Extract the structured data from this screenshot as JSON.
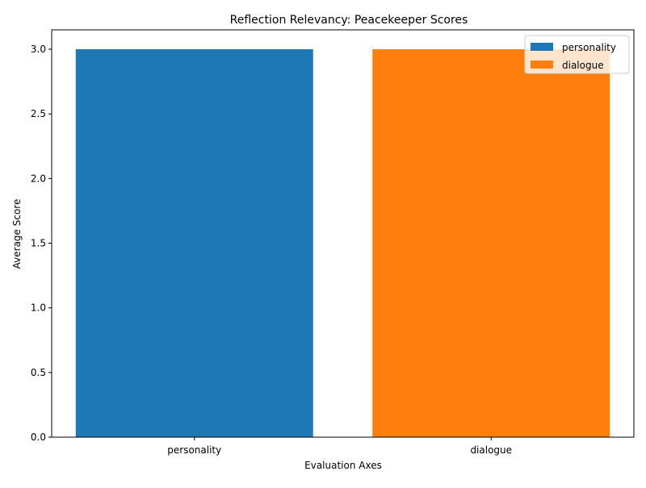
{
  "chart_data": {
    "type": "bar",
    "title": "Reflection Relevancy: Peacekeeper Scores",
    "xlabel": "Evaluation Axes",
    "ylabel": "Average Score",
    "categories": [
      "personality",
      "dialogue"
    ],
    "series": [
      {
        "name": "personality",
        "values": [
          3.0,
          null
        ],
        "color": "#1f77b4"
      },
      {
        "name": "dialogue",
        "values": [
          null,
          3.0
        ],
        "color": "#ff7f0e"
      }
    ],
    "ylim": [
      0,
      3.15
    ],
    "yticks": [
      "0.0",
      "0.5",
      "1.0",
      "1.5",
      "2.0",
      "2.5",
      "3.0"
    ],
    "grid": false,
    "legend_position": "top-right"
  }
}
